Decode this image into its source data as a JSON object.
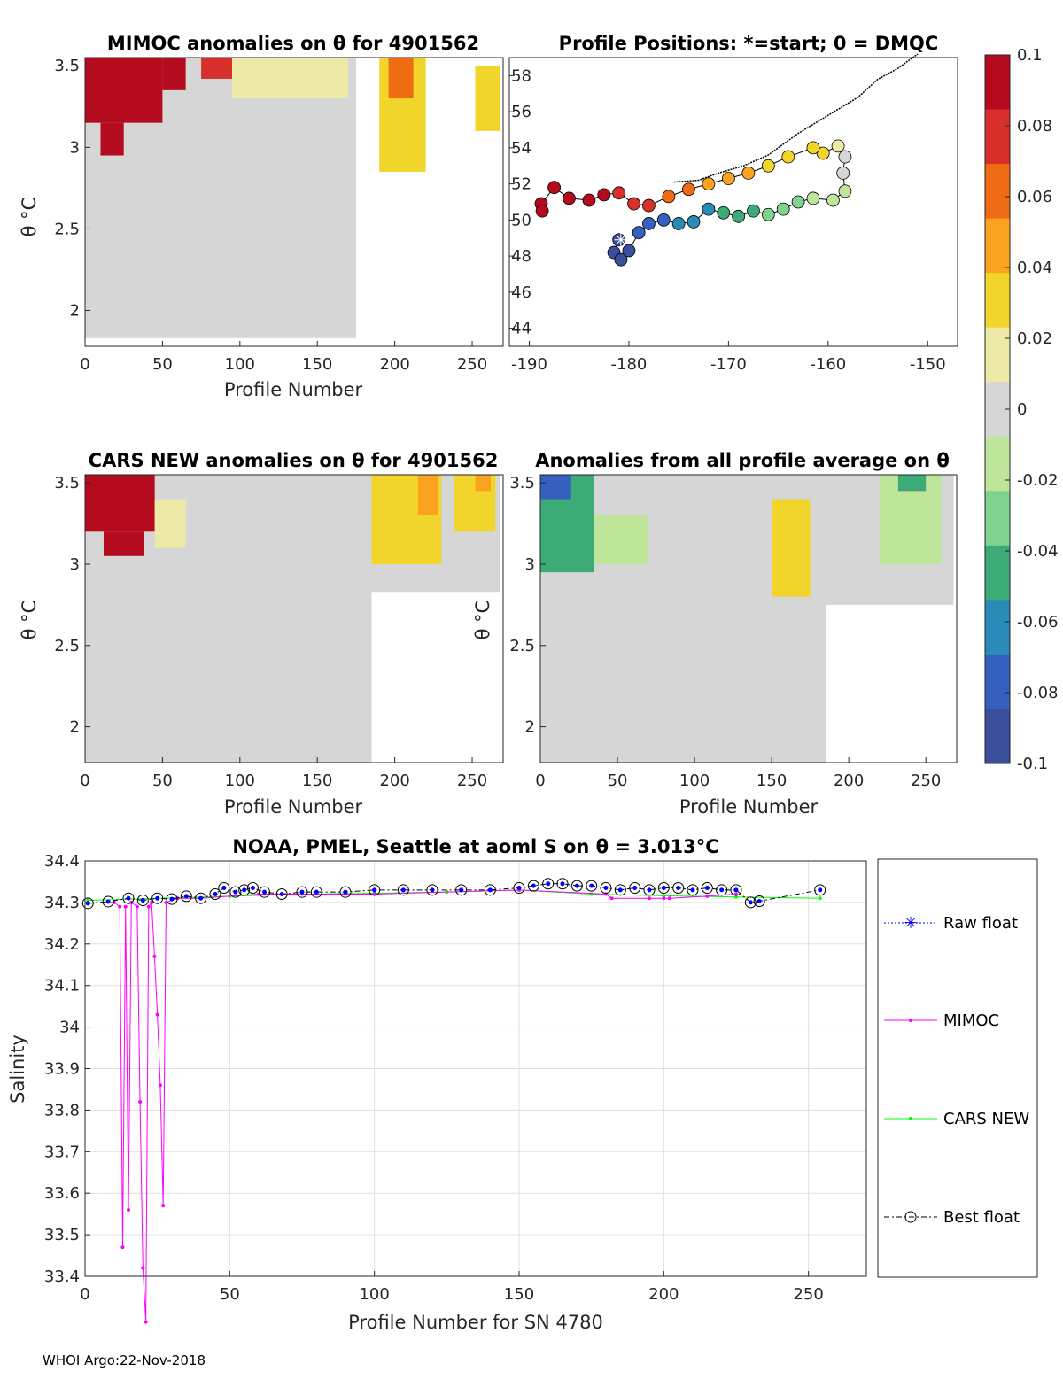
{
  "footer": "WHOI Argo:22-Nov-2018",
  "colorbar": {
    "ticks": [
      "0.1",
      "0.08",
      "0.06",
      "0.04",
      "0.02",
      "0",
      "-0.02",
      "-0.04",
      "-0.06",
      "-0.08",
      "-0.1"
    ],
    "range": [
      -0.1,
      0.1
    ],
    "colors": [
      "#b40b1e",
      "#d7302b",
      "#ef6c15",
      "#f9a320",
      "#f2d52b",
      "#ede9a6",
      "#d6d6d6",
      "#bfe59a",
      "#7fd38f",
      "#3cab78",
      "#2a8bb8",
      "#3560c0",
      "#3a4e9c"
    ]
  },
  "chart_data": [
    {
      "id": "mimoc",
      "type": "heatmap",
      "title": "MIMOC anomalies on θ  for 4901562",
      "xlabel": "Profile Number",
      "ylabel": "θ °C",
      "xlim": [
        0,
        270
      ],
      "ylim": [
        1.78,
        3.55
      ],
      "xticks": [
        "0",
        "50",
        "100",
        "150",
        "200",
        "250"
      ],
      "yticks": [
        "2",
        "2.5",
        "3",
        "3.5"
      ],
      "blocks": [
        {
          "x": [
            0,
            175
          ],
          "y": [
            1.83,
            3.55
          ],
          "v": 0
        },
        {
          "x": [
            0,
            50
          ],
          "y": [
            3.15,
            3.55
          ],
          "v": 0.1
        },
        {
          "x": [
            10,
            25
          ],
          "y": [
            2.95,
            3.15
          ],
          "v": 0.1
        },
        {
          "x": [
            50,
            65
          ],
          "y": [
            3.35,
            3.55
          ],
          "v": 0.1
        },
        {
          "x": [
            75,
            95
          ],
          "y": [
            3.42,
            3.55
          ],
          "v": 0.08
        },
        {
          "x": [
            95,
            170
          ],
          "y": [
            3.3,
            3.55
          ],
          "v": 0.02
        },
        {
          "x": [
            190,
            220
          ],
          "y": [
            2.85,
            3.55
          ],
          "v": 0.03
        },
        {
          "x": [
            196,
            212
          ],
          "y": [
            3.3,
            3.55
          ],
          "v": 0.06
        },
        {
          "x": [
            252,
            268
          ],
          "y": [
            3.1,
            3.5
          ],
          "v": 0.03
        }
      ]
    },
    {
      "id": "positions",
      "type": "scatter",
      "title": "Profile Positions: *=start; 0 = DMQC",
      "xlim": [
        -192,
        -147
      ],
      "ylim": [
        43,
        59
      ],
      "xticks": [
        "-190",
        "-180",
        "-170",
        "-160",
        "-150"
      ],
      "yticks": [
        "44",
        "46",
        "48",
        "50",
        "52",
        "54",
        "56",
        "58"
      ],
      "start": {
        "lon": -180.8,
        "lat": 48.9
      },
      "track": [
        {
          "lon": -181,
          "lat": 48.9,
          "v": -0.09
        },
        {
          "lon": -181.5,
          "lat": 48.2,
          "v": -0.09
        },
        {
          "lon": -180.8,
          "lat": 47.8,
          "v": -0.09
        },
        {
          "lon": -180,
          "lat": 48.3,
          "v": -0.085
        },
        {
          "lon": -179,
          "lat": 49.3,
          "v": -0.08
        },
        {
          "lon": -178,
          "lat": 49.8,
          "v": -0.075
        },
        {
          "lon": -176.5,
          "lat": 50,
          "v": -0.07
        },
        {
          "lon": -175,
          "lat": 49.8,
          "v": -0.065
        },
        {
          "lon": -173.5,
          "lat": 49.9,
          "v": -0.06
        },
        {
          "lon": -172,
          "lat": 50.6,
          "v": -0.055
        },
        {
          "lon": -170.5,
          "lat": 50.4,
          "v": -0.05
        },
        {
          "lon": -169,
          "lat": 50.2,
          "v": -0.045
        },
        {
          "lon": -167.5,
          "lat": 50.5,
          "v": -0.04
        },
        {
          "lon": -166,
          "lat": 50.3,
          "v": -0.035
        },
        {
          "lon": -164.5,
          "lat": 50.6,
          "v": -0.03
        },
        {
          "lon": -163,
          "lat": 51,
          "v": -0.025
        },
        {
          "lon": -161.5,
          "lat": 51.2,
          "v": -0.02
        },
        {
          "lon": -159.5,
          "lat": 51.1,
          "v": -0.015
        },
        {
          "lon": -158.3,
          "lat": 51.6,
          "v": -0.01
        },
        {
          "lon": -158.5,
          "lat": 52.6,
          "v": -0.005
        },
        {
          "lon": -158.3,
          "lat": 53.5,
          "v": 0.0
        },
        {
          "lon": -159,
          "lat": 54.1,
          "v": 0.02
        },
        {
          "lon": -160.5,
          "lat": 53.7,
          "v": 0.03
        },
        {
          "lon": -161.5,
          "lat": 54
        },
        {
          "lon": -164,
          "lat": 53.5,
          "v": 0.035
        },
        {
          "lon": -166,
          "lat": 53
        },
        {
          "lon": -168,
          "lat": 52.6,
          "v": 0.04
        },
        {
          "lon": -170,
          "lat": 52.3,
          "v": 0.045
        },
        {
          "lon": -172,
          "lat": 52,
          "v": 0.05
        },
        {
          "lon": -174,
          "lat": 51.7,
          "v": 0.055
        },
        {
          "lon": -176,
          "lat": 51.3,
          "v": 0.06
        },
        {
          "lon": -178,
          "lat": 50.8,
          "v": 0.07
        },
        {
          "lon": -179.5,
          "lat": 50.9,
          "v": 0.075
        },
        {
          "lon": -181,
          "lat": 51.5,
          "v": 0.08
        },
        {
          "lon": -182.5,
          "lat": 51.4,
          "v": 0.085
        },
        {
          "lon": -184,
          "lat": 51.1,
          "v": 0.09
        },
        {
          "lon": -186,
          "lat": 51.2,
          "v": 0.095
        },
        {
          "lon": -187.5,
          "lat": 51.8,
          "v": 0.1
        },
        {
          "lon": -188.8,
          "lat": 50.9,
          "v": 0.1
        },
        {
          "lon": -188.7,
          "lat": 50.5,
          "v": 0.1
        }
      ],
      "coast": [
        [
          -175.5,
          52.1
        ],
        [
          -173,
          52.2
        ],
        [
          -171,
          52.6
        ],
        [
          -168.5,
          53.0
        ],
        [
          -166,
          53.6
        ],
        [
          -163,
          54.8
        ],
        [
          -160,
          55.8
        ],
        [
          -157,
          56.8
        ],
        [
          -155,
          57.8
        ],
        [
          -153,
          58.4
        ],
        [
          -151,
          59.2
        ]
      ]
    },
    {
      "id": "cars",
      "type": "heatmap",
      "title": "CARS NEW anomalies on θ for 4901562",
      "xlabel": "Profile Number",
      "ylabel": "θ °C",
      "xlim": [
        0,
        270
      ],
      "ylim": [
        1.78,
        3.55
      ],
      "xticks": [
        "0",
        "50",
        "100",
        "150",
        "200",
        "250"
      ],
      "yticks": [
        "2",
        "2.5",
        "3",
        "3.5"
      ],
      "blocks": [
        {
          "x": [
            0,
            185
          ],
          "y": [
            1.78,
            3.55
          ],
          "v": 0
        },
        {
          "x": [
            185,
            268
          ],
          "y": [
            2.83,
            3.55
          ],
          "v": 0
        },
        {
          "x": [
            0,
            45
          ],
          "y": [
            3.2,
            3.55
          ],
          "v": 0.1
        },
        {
          "x": [
            12,
            38
          ],
          "y": [
            3.05,
            3.2
          ],
          "v": 0.1
        },
        {
          "x": [
            45,
            65
          ],
          "y": [
            3.1,
            3.4
          ],
          "v": 0.02
        },
        {
          "x": [
            185,
            230
          ],
          "y": [
            3.0,
            3.55
          ],
          "v": 0.03
        },
        {
          "x": [
            215,
            228
          ],
          "y": [
            3.3,
            3.55
          ],
          "v": 0.045
        },
        {
          "x": [
            238,
            265
          ],
          "y": [
            3.2,
            3.55
          ],
          "v": 0.03
        },
        {
          "x": [
            252,
            262
          ],
          "y": [
            3.45,
            3.55
          ],
          "v": 0.05
        }
      ]
    },
    {
      "id": "avg",
      "type": "heatmap",
      "title": "Anomalies from all profile average on θ",
      "xlabel": "Profile Number",
      "ylabel": "θ °C",
      "xlim": [
        0,
        270
      ],
      "ylim": [
        1.78,
        3.55
      ],
      "xticks": [
        "0",
        "50",
        "100",
        "150",
        "200",
        "250"
      ],
      "yticks": [
        "2",
        "2.5",
        "3",
        "3.5"
      ],
      "blocks": [
        {
          "x": [
            0,
            185
          ],
          "y": [
            1.78,
            3.55
          ],
          "v": 0
        },
        {
          "x": [
            185,
            268
          ],
          "y": [
            2.75,
            3.55
          ],
          "v": 0
        },
        {
          "x": [
            0,
            35
          ],
          "y": [
            2.95,
            3.55
          ],
          "v": -0.04
        },
        {
          "x": [
            0,
            20
          ],
          "y": [
            3.4,
            3.55
          ],
          "v": -0.07
        },
        {
          "x": [
            35,
            70
          ],
          "y": [
            3.0,
            3.3
          ],
          "v": -0.02
        },
        {
          "x": [
            150,
            175
          ],
          "y": [
            2.8,
            3.4
          ],
          "v": 0.03
        },
        {
          "x": [
            220,
            260
          ],
          "y": [
            3.0,
            3.55
          ],
          "v": -0.02
        },
        {
          "x": [
            232,
            250
          ],
          "y": [
            3.45,
            3.55
          ],
          "v": -0.04
        }
      ]
    },
    {
      "id": "salinity",
      "type": "line",
      "title": "NOAA, PMEL, Seattle at aoml S on θ = 3.013°C",
      "xlabel": "Profile Number for SN 4780",
      "ylabel": "Salinity",
      "xlim": [
        0,
        270
      ],
      "ylim": [
        33.4,
        34.4
      ],
      "xticks": [
        "0",
        "50",
        "100",
        "150",
        "200",
        "250"
      ],
      "yticks": [
        "33.4",
        "33.5",
        "33.6",
        "33.7",
        "33.8",
        "33.9",
        "34",
        "34.1",
        "34.2",
        "34.3",
        "34.4"
      ],
      "legend": [
        "Raw float",
        "MIMOC",
        "CARS NEW",
        "Best float"
      ],
      "series": [
        {
          "name": "Best float",
          "color": "#000000",
          "x": [
            1,
            8,
            15,
            20,
            25,
            30,
            35,
            40,
            45,
            48,
            52,
            55,
            58,
            62,
            68,
            75,
            80,
            90,
            100,
            110,
            120,
            130,
            140,
            150,
            155,
            160,
            165,
            170,
            175,
            180,
            185,
            190,
            195,
            200,
            205,
            210,
            215,
            220,
            225,
            230,
            233,
            254
          ],
          "y": [
            34.298,
            34.302,
            34.31,
            34.305,
            34.31,
            34.308,
            34.315,
            34.31,
            34.32,
            34.335,
            34.325,
            34.33,
            34.335,
            34.325,
            34.32,
            34.325,
            34.325,
            34.325,
            34.33,
            34.33,
            34.33,
            34.33,
            34.33,
            34.335,
            34.34,
            34.345,
            34.345,
            34.34,
            34.34,
            34.335,
            34.33,
            34.335,
            34.33,
            34.335,
            34.335,
            34.33,
            34.335,
            34.33,
            34.33,
            34.3,
            34.303,
            34.33
          ]
        },
        {
          "name": "MIMOC",
          "color": "#ff00ff",
          "x": [
            1,
            10,
            12,
            13,
            14,
            15,
            16,
            18,
            19,
            20,
            21,
            22,
            23,
            24,
            25,
            26,
            27,
            28,
            32,
            40,
            60,
            100,
            150,
            180,
            182,
            195,
            200,
            202,
            215,
            225
          ],
          "y": [
            34.298,
            34.3,
            34.29,
            33.47,
            34.29,
            33.56,
            34.3,
            34.29,
            33.82,
            33.42,
            33.29,
            34.29,
            34.3,
            34.17,
            34.03,
            33.86,
            33.57,
            34.3,
            34.31,
            34.31,
            34.32,
            34.32,
            34.33,
            34.32,
            34.31,
            34.31,
            34.31,
            34.31,
            34.315,
            34.32
          ]
        },
        {
          "name": "CARS NEW",
          "color": "#00ff00",
          "x": [
            1,
            25,
            50,
            75,
            100,
            125,
            150,
            175,
            200,
            225,
            254
          ],
          "y": [
            34.305,
            34.31,
            34.315,
            34.32,
            34.322,
            34.325,
            34.33,
            34.32,
            34.316,
            34.313,
            34.31
          ]
        }
      ]
    }
  ]
}
